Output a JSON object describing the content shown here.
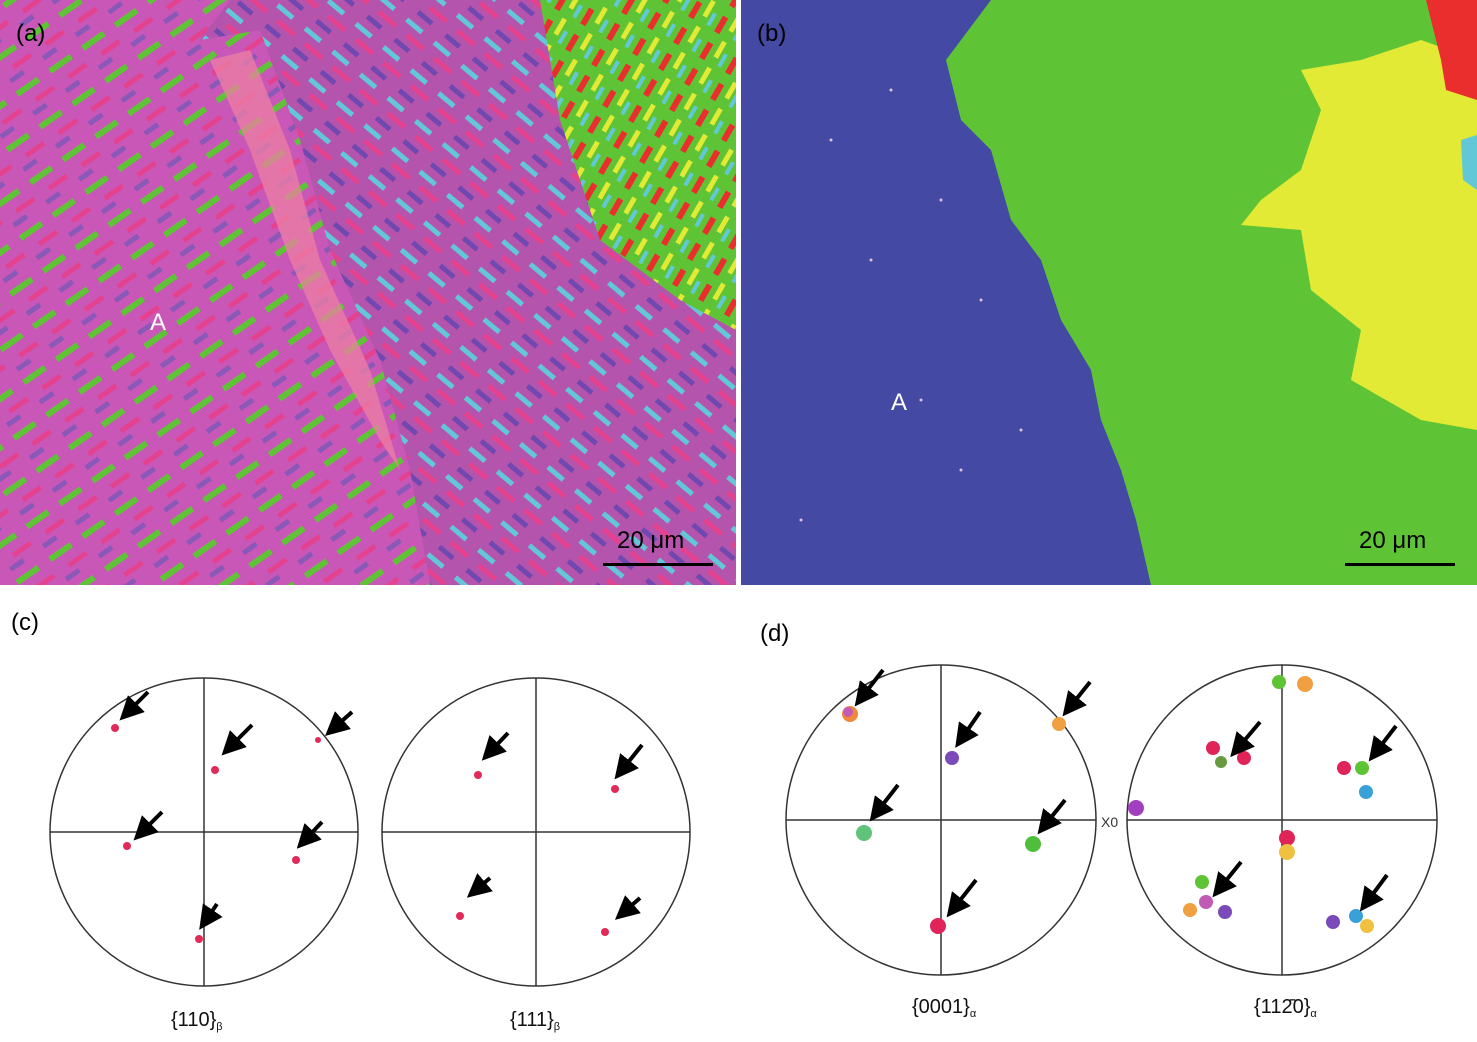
{
  "panel_labels": {
    "a": "(a)",
    "b": "(b)",
    "c": "(c)",
    "d": "(d)"
  },
  "region_marker": "A",
  "scale_bar": {
    "a": "20 μm",
    "b": "20 μm"
  },
  "pole_figures": {
    "c": [
      {
        "main": "{110}",
        "sub": "β"
      },
      {
        "main": "{111}",
        "sub": "β"
      }
    ],
    "d": [
      {
        "main": "{0001}",
        "sub": "α"
      },
      {
        "main": "{112̄0}",
        "sub": "α"
      }
    ]
  },
  "axis_marker": "X0",
  "colors": {
    "beta_phase": "#4449a3",
    "alpha_green": "#5fc435",
    "alpha_yellow": "#e3ea35",
    "alpha_red": "#ea2d2d",
    "alpha_cyan": "#62c8d8",
    "pink": "#e4428f",
    "magenta": "#c857b8",
    "arrow": "#000000"
  }
}
